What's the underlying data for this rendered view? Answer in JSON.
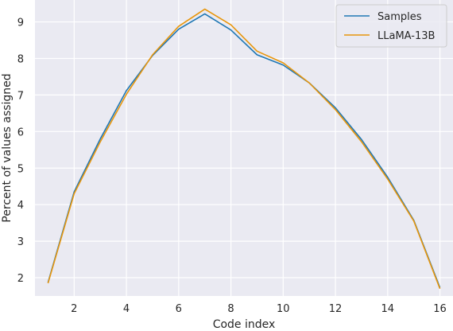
{
  "chart_data": {
    "type": "line",
    "xlabel": "Code index",
    "ylabel": "Percent of values assigned",
    "xlim": [
      0.5,
      16.5
    ],
    "ylim": [
      1.5,
      9.6
    ],
    "xticks": [
      2,
      4,
      6,
      8,
      10,
      12,
      14,
      16
    ],
    "yticks": [
      2,
      3,
      4,
      5,
      6,
      7,
      8,
      9
    ],
    "grid": true,
    "legend_position": "top-right",
    "x": [
      1,
      2,
      3,
      4,
      5,
      6,
      7,
      8,
      9,
      10,
      11,
      12,
      13,
      14,
      15,
      16
    ],
    "series": [
      {
        "name": "Samples",
        "color": "#1f77b4",
        "values": [
          1.87,
          4.35,
          5.8,
          7.12,
          8.08,
          8.8,
          9.22,
          8.78,
          8.1,
          7.82,
          7.33,
          6.65,
          5.78,
          4.75,
          3.57,
          1.73
        ]
      },
      {
        "name": "LLaMA-13B",
        "color": "#e8960c",
        "values": [
          1.85,
          4.3,
          5.72,
          7.02,
          8.1,
          8.88,
          9.35,
          8.92,
          8.2,
          7.88,
          7.33,
          6.6,
          5.72,
          4.7,
          3.55,
          1.7
        ]
      }
    ]
  }
}
